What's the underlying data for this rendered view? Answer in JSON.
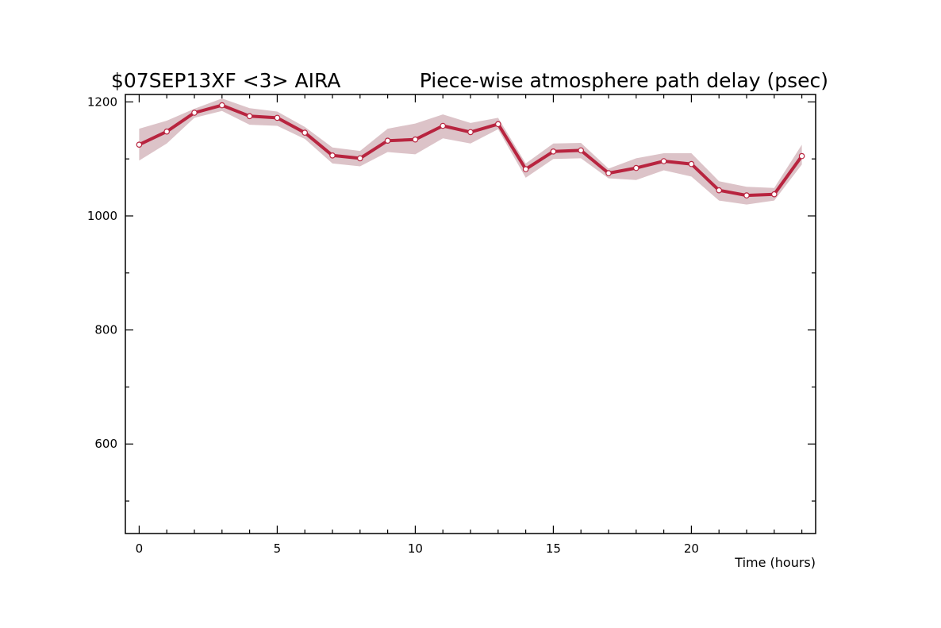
{
  "header": {
    "left": "$07SEP13XF <3>  AIRA",
    "right": "Piece-wise atmosphere path delay (psec)"
  },
  "colors": {
    "line": "#b8243f",
    "band": "#dcc3c8",
    "marker_fill": "#ffffff",
    "frame": "#000000"
  },
  "chart_data": {
    "type": "line",
    "title": "Piece-wise atmosphere path delay (psec)",
    "xlabel": "Time (hours)",
    "ylabel": "",
    "xlim": [
      -0.5,
      24.5
    ],
    "ylim": [
      443,
      1213
    ],
    "x_ticks": [
      0,
      5,
      10,
      15,
      20
    ],
    "x_tick_labels": [
      "0",
      "5",
      "10",
      "15",
      "20"
    ],
    "y_ticks": [
      600,
      800,
      1000,
      1200
    ],
    "y_tick_labels": [
      "600",
      "800",
      "1000",
      "1200"
    ],
    "grid": false,
    "series": [
      {
        "x": [
          0,
          1,
          2,
          3,
          4,
          5,
          6,
          7,
          8,
          9,
          10,
          11,
          12,
          13,
          14,
          15,
          16,
          17,
          18,
          19,
          20,
          21,
          22,
          23,
          24
        ],
        "values": [
          1125,
          1148,
          1181,
          1194,
          1175,
          1172,
          1146,
          1106,
          1101,
          1132,
          1134,
          1158,
          1147,
          1161,
          1082,
          1113,
          1115,
          1075,
          1084,
          1096,
          1091,
          1045,
          1036,
          1038,
          1105
        ],
        "upper": [
          1153,
          1167,
          1188,
          1206,
          1189,
          1183,
          1156,
          1120,
          1114,
          1153,
          1162,
          1178,
          1163,
          1172,
          1092,
          1127,
          1128,
          1083,
          1101,
          1110,
          1110,
          1061,
          1051,
          1049,
          1125
        ],
        "lower": [
          1097,
          1127,
          1172,
          1184,
          1160,
          1158,
          1135,
          1092,
          1087,
          1112,
          1108,
          1136,
          1127,
          1152,
          1067,
          1100,
          1101,
          1066,
          1063,
          1080,
          1069,
          1027,
          1020,
          1027,
          1090
        ]
      }
    ]
  }
}
